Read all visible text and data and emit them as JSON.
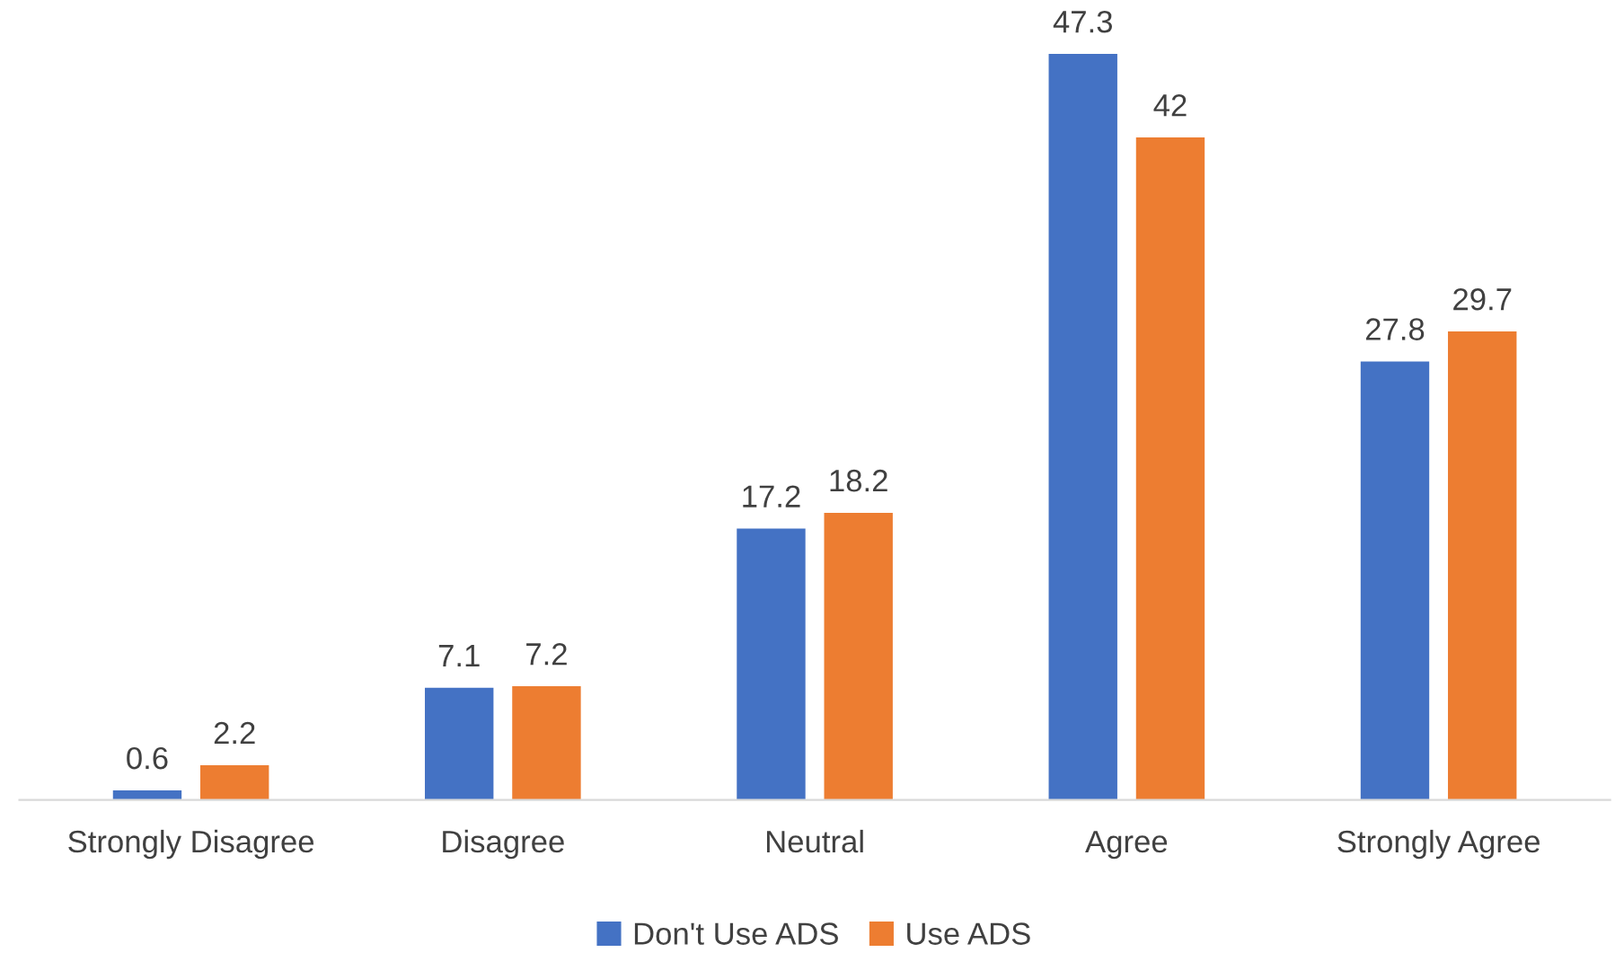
{
  "chart_data": {
    "type": "bar",
    "categories": [
      "Strongly Disagree",
      "Disagree",
      "Neutral",
      "Agree",
      "Strongly Agree"
    ],
    "series": [
      {
        "name": "Don't Use ADS",
        "color": "#4472c4",
        "values": [
          0.6,
          7.1,
          17.2,
          47.3,
          27.8
        ]
      },
      {
        "name": "Use ADS",
        "color": "#ed7d31",
        "values": [
          2.2,
          7.2,
          18.2,
          42,
          29.7
        ]
      }
    ],
    "data_labels": true,
    "legend": "bottom",
    "grid": false
  }
}
